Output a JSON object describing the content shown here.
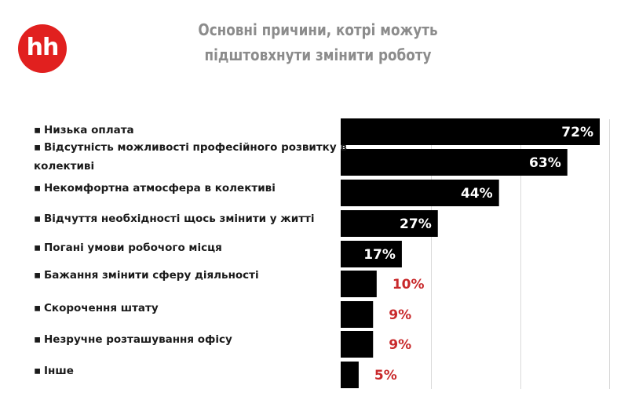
{
  "logo": {
    "text": "hh",
    "color": "#e1201f"
  },
  "title_lines": [
    "Основні причини, котрі можуть",
    "підштовхнути змінити роботу"
  ],
  "colors": {
    "bar": "#000000",
    "value_inside": "#ffffff",
    "value_outside": "#c8282a",
    "grid": "#d9d9d9",
    "title": "#8c8c8c"
  },
  "chart_data": {
    "type": "bar",
    "orientation": "horizontal",
    "categories": [
      "Низька оплата",
      "Відсутність можливості професійного розвитку в колективі",
      "Некомфортна атмосфера в колективі",
      "Відчуття необхідності щось змінити у житті",
      "Погані умови робочого місця",
      "Бажання змінити сферу діяльності",
      "Скорочення штату",
      "Незручне розташування офісу",
      "Інше"
    ],
    "category_lines": [
      [
        "Низька оплата"
      ],
      [
        "Відсутність можливості професійного розвитку в",
        "колективі"
      ],
      [
        "Некомфортна атмосфера в колективі"
      ],
      [
        "Відчуття необхідності щось змінити у житті"
      ],
      [
        "Погані умови робочого місця"
      ],
      [
        "Бажання змінити сферу діяльності"
      ],
      [
        "Скорочення штату"
      ],
      [
        "Незручне розташування офісу"
      ],
      [
        "Інше"
      ]
    ],
    "values": [
      72,
      63,
      44,
      27,
      17,
      10,
      9,
      9,
      5
    ],
    "value_labels": [
      "72%",
      "63%",
      "44%",
      "27%",
      "17%",
      "10%",
      "9%",
      "9%",
      "5%"
    ],
    "xlim": [
      0,
      75
    ],
    "gridlines_at": [
      25,
      50,
      75
    ],
    "grid": true,
    "legend": "none",
    "title": "Основні причини, котрі можуть підштовхнути змінити роботу"
  }
}
